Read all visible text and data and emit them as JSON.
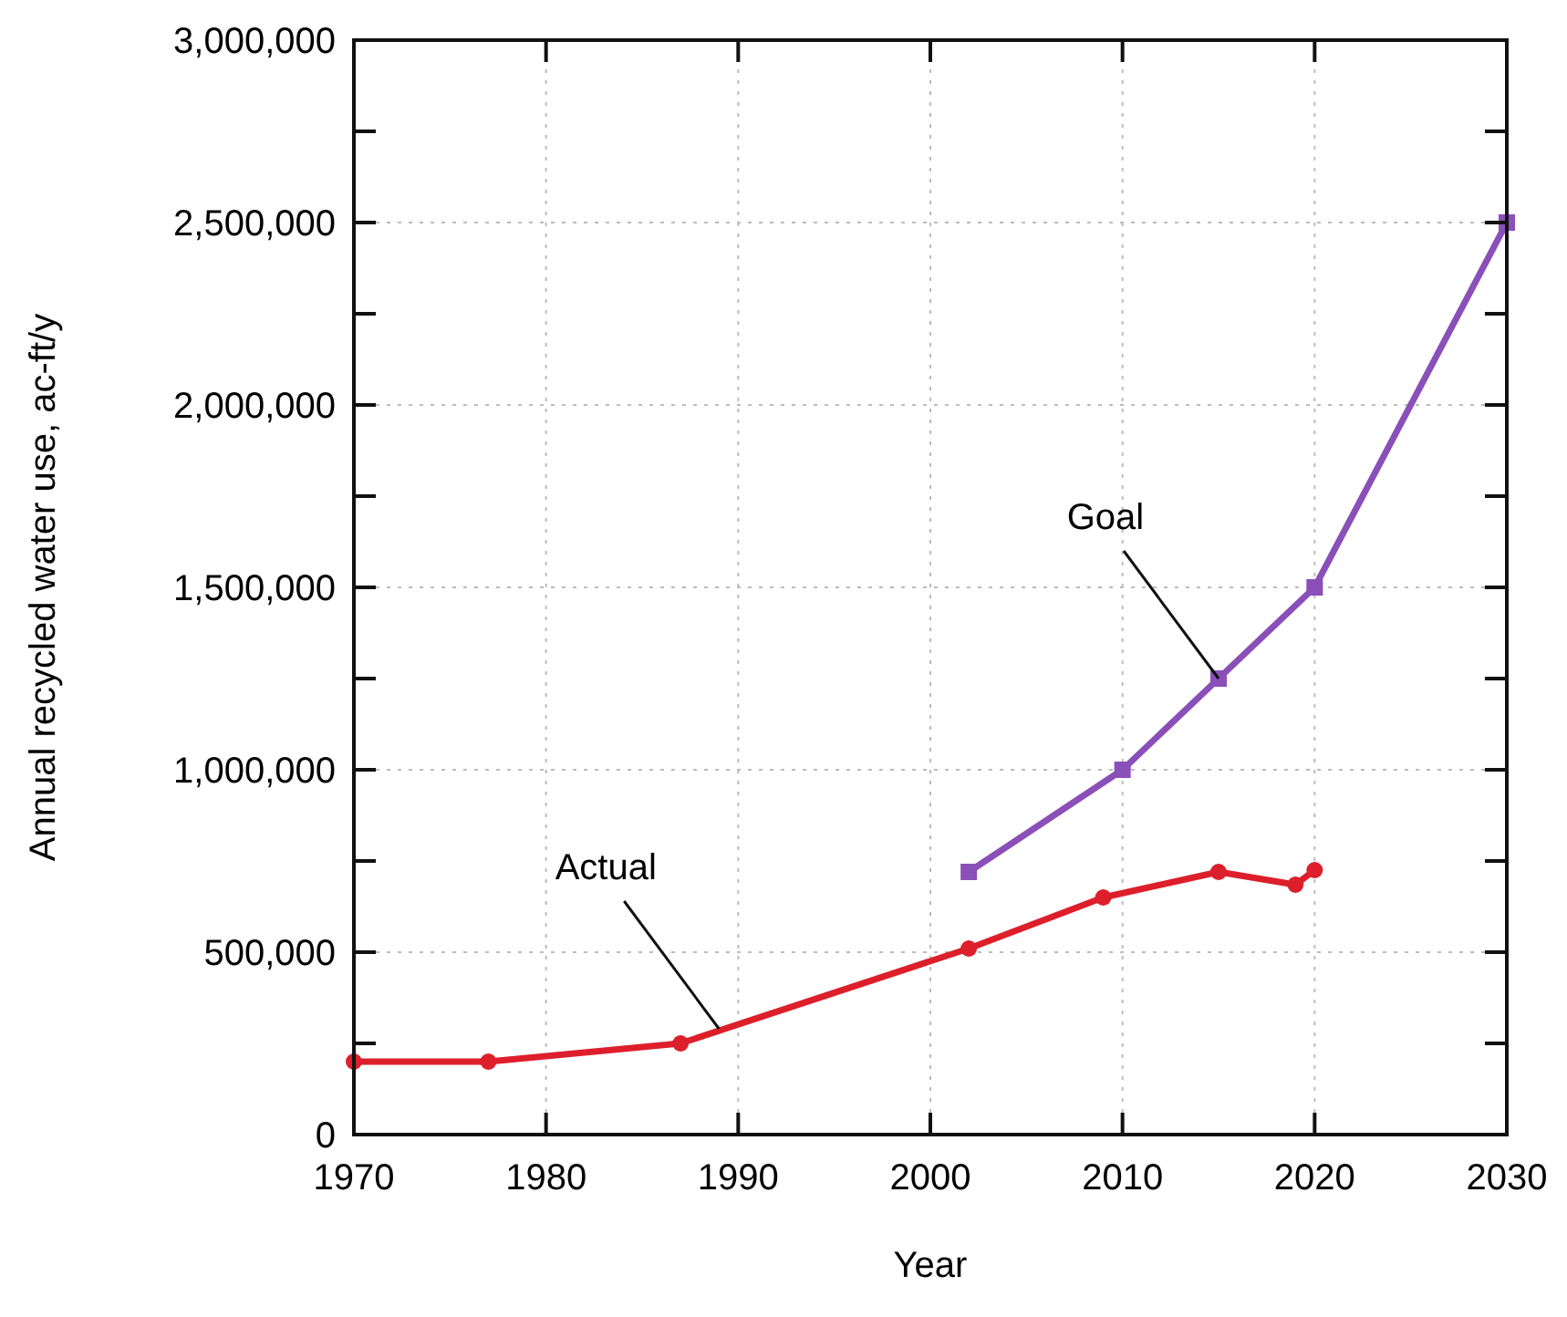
{
  "chart_data": {
    "type": "line",
    "xlabel": "Year",
    "ylabel": "Annual recycled water use, ac-ft/y",
    "xlim": [
      1970,
      2030
    ],
    "xticks": [
      1970,
      1980,
      1990,
      2000,
      2010,
      2020,
      2030
    ],
    "ylim": [
      0,
      3000000
    ],
    "yticks": [
      {
        "value": 0,
        "label": "0"
      },
      {
        "value": 250000,
        "label": null
      },
      {
        "value": 500000,
        "label": "500,000"
      },
      {
        "value": 750000,
        "label": null
      },
      {
        "value": 1000000,
        "label": "1,000,000"
      },
      {
        "value": 1250000,
        "label": null
      },
      {
        "value": 1500000,
        "label": "1,500,000"
      },
      {
        "value": 1750000,
        "label": null
      },
      {
        "value": 2000000,
        "label": "2,000,000"
      },
      {
        "value": 2250000,
        "label": null
      },
      {
        "value": 2500000,
        "label": "2,500,000"
      },
      {
        "value": 2750000,
        "label": null
      },
      {
        "value": 3000000,
        "label": "3,000,000"
      }
    ],
    "grid": true,
    "line_style": "solid",
    "series": [
      {
        "color": "#dd1f2b",
        "marker": "circle",
        "x": [
          1970,
          1977,
          1987,
          2002,
          2009,
          2015,
          2019,
          2020
        ],
        "values": [
          200000,
          200000,
          250000,
          510000,
          650000,
          720000,
          685000,
          725000
        ]
      },
      {
        "color": "#8a4fb8",
        "marker": "square",
        "x": [
          2002,
          2010,
          2015,
          2020,
          2030
        ],
        "values": [
          720000,
          1000000,
          1250000,
          1500000,
          2500000
        ]
      }
    ],
    "annotations": [
      {
        "text": "Actual",
        "x": 1989,
        "y": 290000
      },
      {
        "text": "Goal",
        "x": 2015,
        "y": 1250000
      }
    ]
  }
}
